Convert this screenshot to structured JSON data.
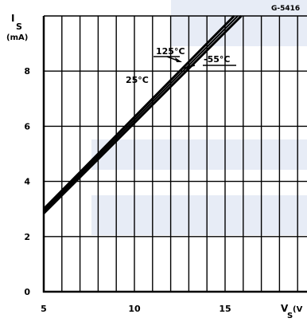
{
  "figure_id": "G-5416",
  "colors": {
    "ink": "#000000",
    "watermark": "#dfe6f3",
    "background": "#ffffff"
  },
  "chart_data": {
    "type": "line",
    "ylabel_main": "I",
    "ylabel_sub": "S",
    "ylabel_unit": "(mA)",
    "xlabel_main": "V",
    "xlabel_sub": "S",
    "xlabel_unit": "(V",
    "xlim": [
      5,
      20
    ],
    "ylim": [
      0,
      10
    ],
    "x_ticks": [
      5,
      10,
      15
    ],
    "x_tick_labels": [
      "5",
      "10",
      "15"
    ],
    "y_ticks": [
      0,
      2,
      4,
      6,
      8
    ],
    "y_tick_labels": [
      "0",
      "2",
      "4",
      "6",
      "8"
    ],
    "grid": true,
    "series": [
      {
        "name": "25°C",
        "x": [
          5,
          15.5
        ],
        "y": [
          3.0,
          10.0
        ]
      },
      {
        "name": "125°C",
        "x": [
          5,
          15.7
        ],
        "y": [
          2.92,
          10.0
        ]
      },
      {
        "name": "-55°C",
        "x": [
          5,
          15.9
        ],
        "y": [
          2.84,
          10.0
        ]
      }
    ],
    "annotations": [
      {
        "text": "125°C",
        "points_to": "125°C"
      },
      {
        "text": "-55°C",
        "points_to": "-55°C"
      },
      {
        "text": "25°C",
        "points_to": "25°C"
      }
    ]
  }
}
